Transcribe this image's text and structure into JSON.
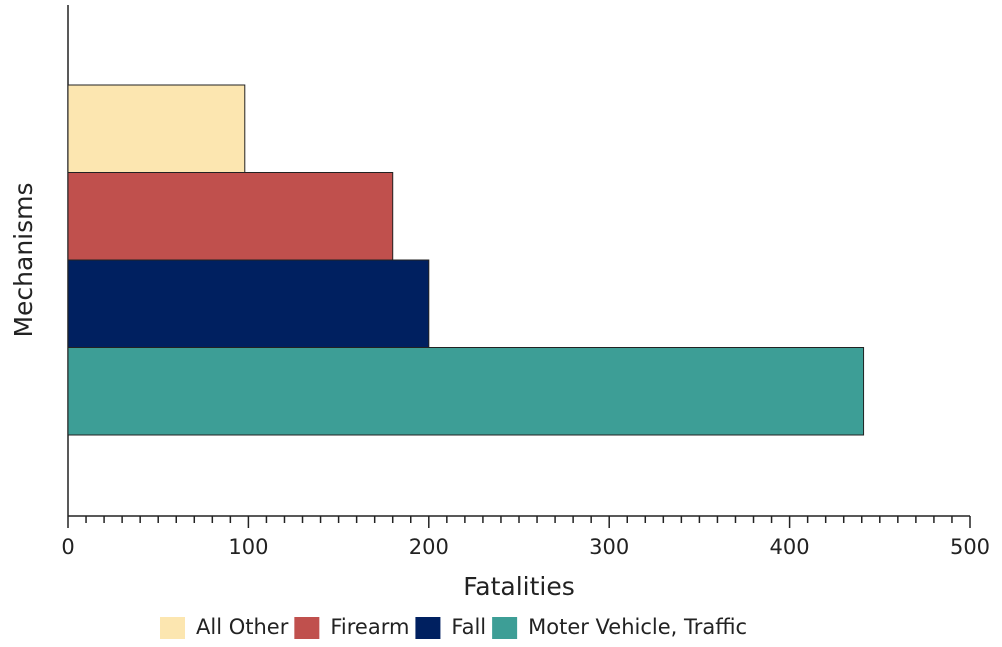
{
  "chart_data": {
    "type": "bar",
    "orientation": "horizontal",
    "x_label": "Fatalities",
    "y_label": "Mechanisms",
    "categories": [
      null
    ],
    "series": [
      {
        "name": "All Other",
        "color": "#fce6b0",
        "values": [
          98
        ]
      },
      {
        "name": "Firearm",
        "color": "#c0504d",
        "values": [
          180
        ]
      },
      {
        "name": "Fall",
        "color": "#002060",
        "values": [
          200
        ]
      },
      {
        "name": "Moter Vehicle, Traffic",
        "color": "#3d9e96",
        "values": [
          441
        ]
      }
    ],
    "xlim": [
      0,
      500
    ],
    "xticks": [
      0,
      100,
      200,
      300,
      400,
      500
    ],
    "grid": false,
    "legend": "bottom"
  }
}
